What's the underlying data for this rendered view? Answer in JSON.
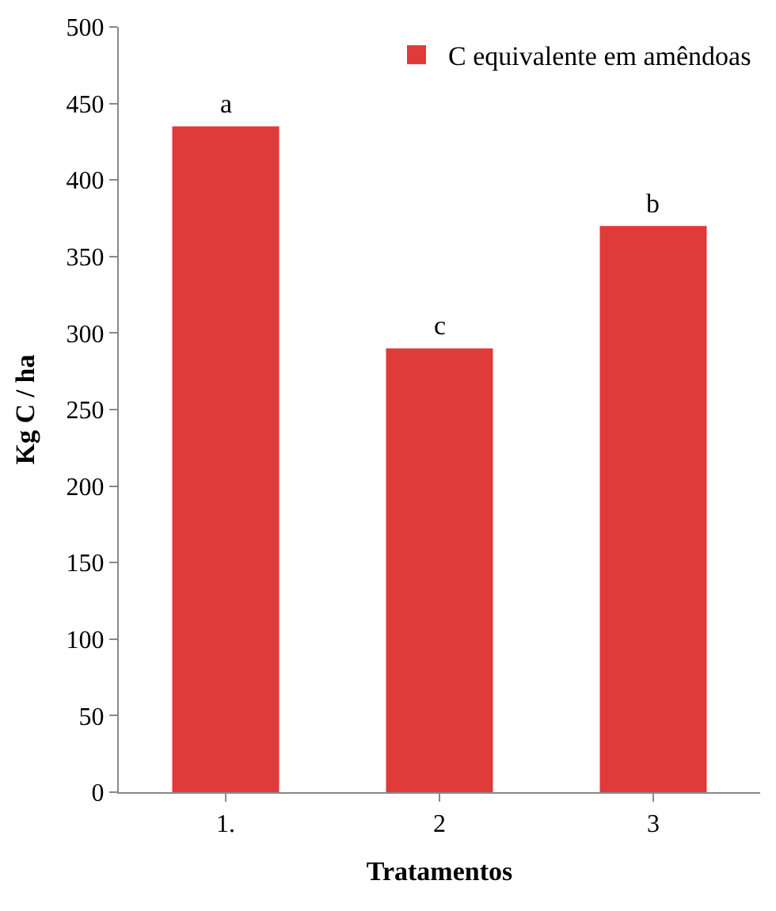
{
  "chart_data": {
    "type": "bar",
    "xlabel": "Tratamentos",
    "ylabel": "Kg C / ha",
    "categories": [
      "1.",
      "2",
      "3"
    ],
    "series": [
      {
        "name": "C equivalente em amêndoas",
        "color": "#e03a3a",
        "values": [
          435,
          290,
          370
        ]
      }
    ],
    "ylim": [
      0,
      500
    ],
    "yticks": [
      0,
      50,
      100,
      150,
      200,
      250,
      300,
      350,
      400,
      450,
      500
    ],
    "annotations": [
      {
        "text": "a",
        "x": "1.",
        "y": 435
      },
      {
        "text": "c",
        "x": "2",
        "y": 290
      },
      {
        "text": "b",
        "x": "3",
        "y": 370
      }
    ],
    "legend": "top right"
  }
}
